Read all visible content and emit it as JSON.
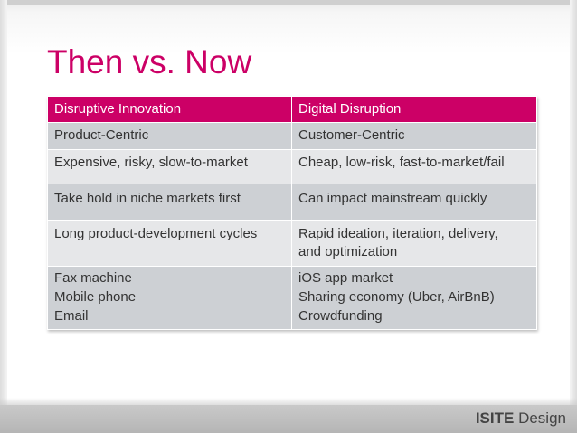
{
  "slide": {
    "title": "Then vs. Now",
    "accent_color": "#cc0066",
    "table": {
      "headers": [
        "Disruptive Innovation",
        "Digital Disruption"
      ],
      "rows": [
        {
          "left": [
            "Product-Centric"
          ],
          "right": [
            "Customer-Centric"
          ]
        },
        {
          "left": [
            "Expensive, risky, slow-to-market"
          ],
          "right": [
            "Cheap, low-risk, fast-to-market/fail"
          ]
        },
        {
          "left": [
            "Take hold in niche markets first"
          ],
          "right": [
            "Can impact mainstream quickly"
          ]
        },
        {
          "left": [
            "Long product-development cycles"
          ],
          "right": [
            "Rapid ideation, iteration, delivery,",
            "and optimization"
          ]
        },
        {
          "left": [
            "Fax machine",
            "Mobile phone",
            "Email"
          ],
          "right": [
            "iOS app market",
            "Sharing economy (Uber, AirBnB)",
            "Crowdfunding"
          ]
        }
      ]
    }
  },
  "footer": {
    "logo_bold": "ISITE",
    "logo_light": "Design"
  }
}
